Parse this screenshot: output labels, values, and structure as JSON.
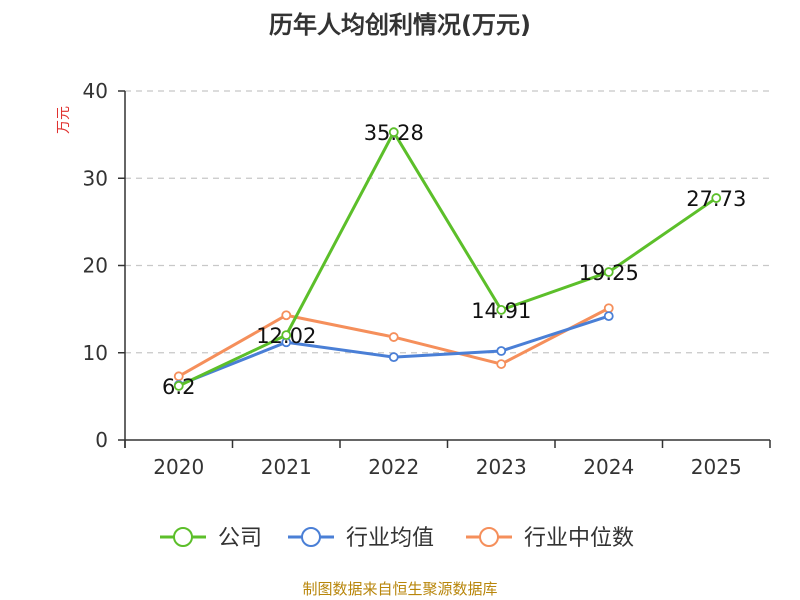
{
  "colors": {
    "company": "#5cbf2a",
    "industry_avg": "#4a7fd6",
    "industry_median": "#f58f5b",
    "ylabel": "#e0312f",
    "source": "#b8860b",
    "grid": "#c8c8c8",
    "axis": "#333333"
  },
  "footer": {
    "source": "制图数据来自恒生聚源数据库"
  },
  "chart_data": {
    "type": "line",
    "title": "历年人均创利情况(万元)",
    "ylabel": "万元",
    "xlabel": "",
    "categories": [
      "2020",
      "2021",
      "2022",
      "2023",
      "2024",
      "2025"
    ],
    "ylim": [
      0,
      40
    ],
    "yticks": [
      0,
      10,
      20,
      30,
      40
    ],
    "grid": true,
    "legend_position": "bottom",
    "series": [
      {
        "name": "公司",
        "key": "company",
        "values": [
          6.2,
          12.02,
          35.28,
          14.91,
          19.25,
          27.73
        ],
        "labels": [
          "6.2",
          "12.02",
          "35.28",
          "14.91",
          "19.25",
          "27.73"
        ]
      },
      {
        "name": "行业均值",
        "key": "industry_avg",
        "values": [
          6.3,
          11.2,
          9.5,
          10.2,
          14.2,
          null
        ]
      },
      {
        "name": "行业中位数",
        "key": "industry_median",
        "values": [
          7.3,
          14.3,
          11.8,
          8.7,
          15.1,
          null
        ]
      }
    ]
  }
}
